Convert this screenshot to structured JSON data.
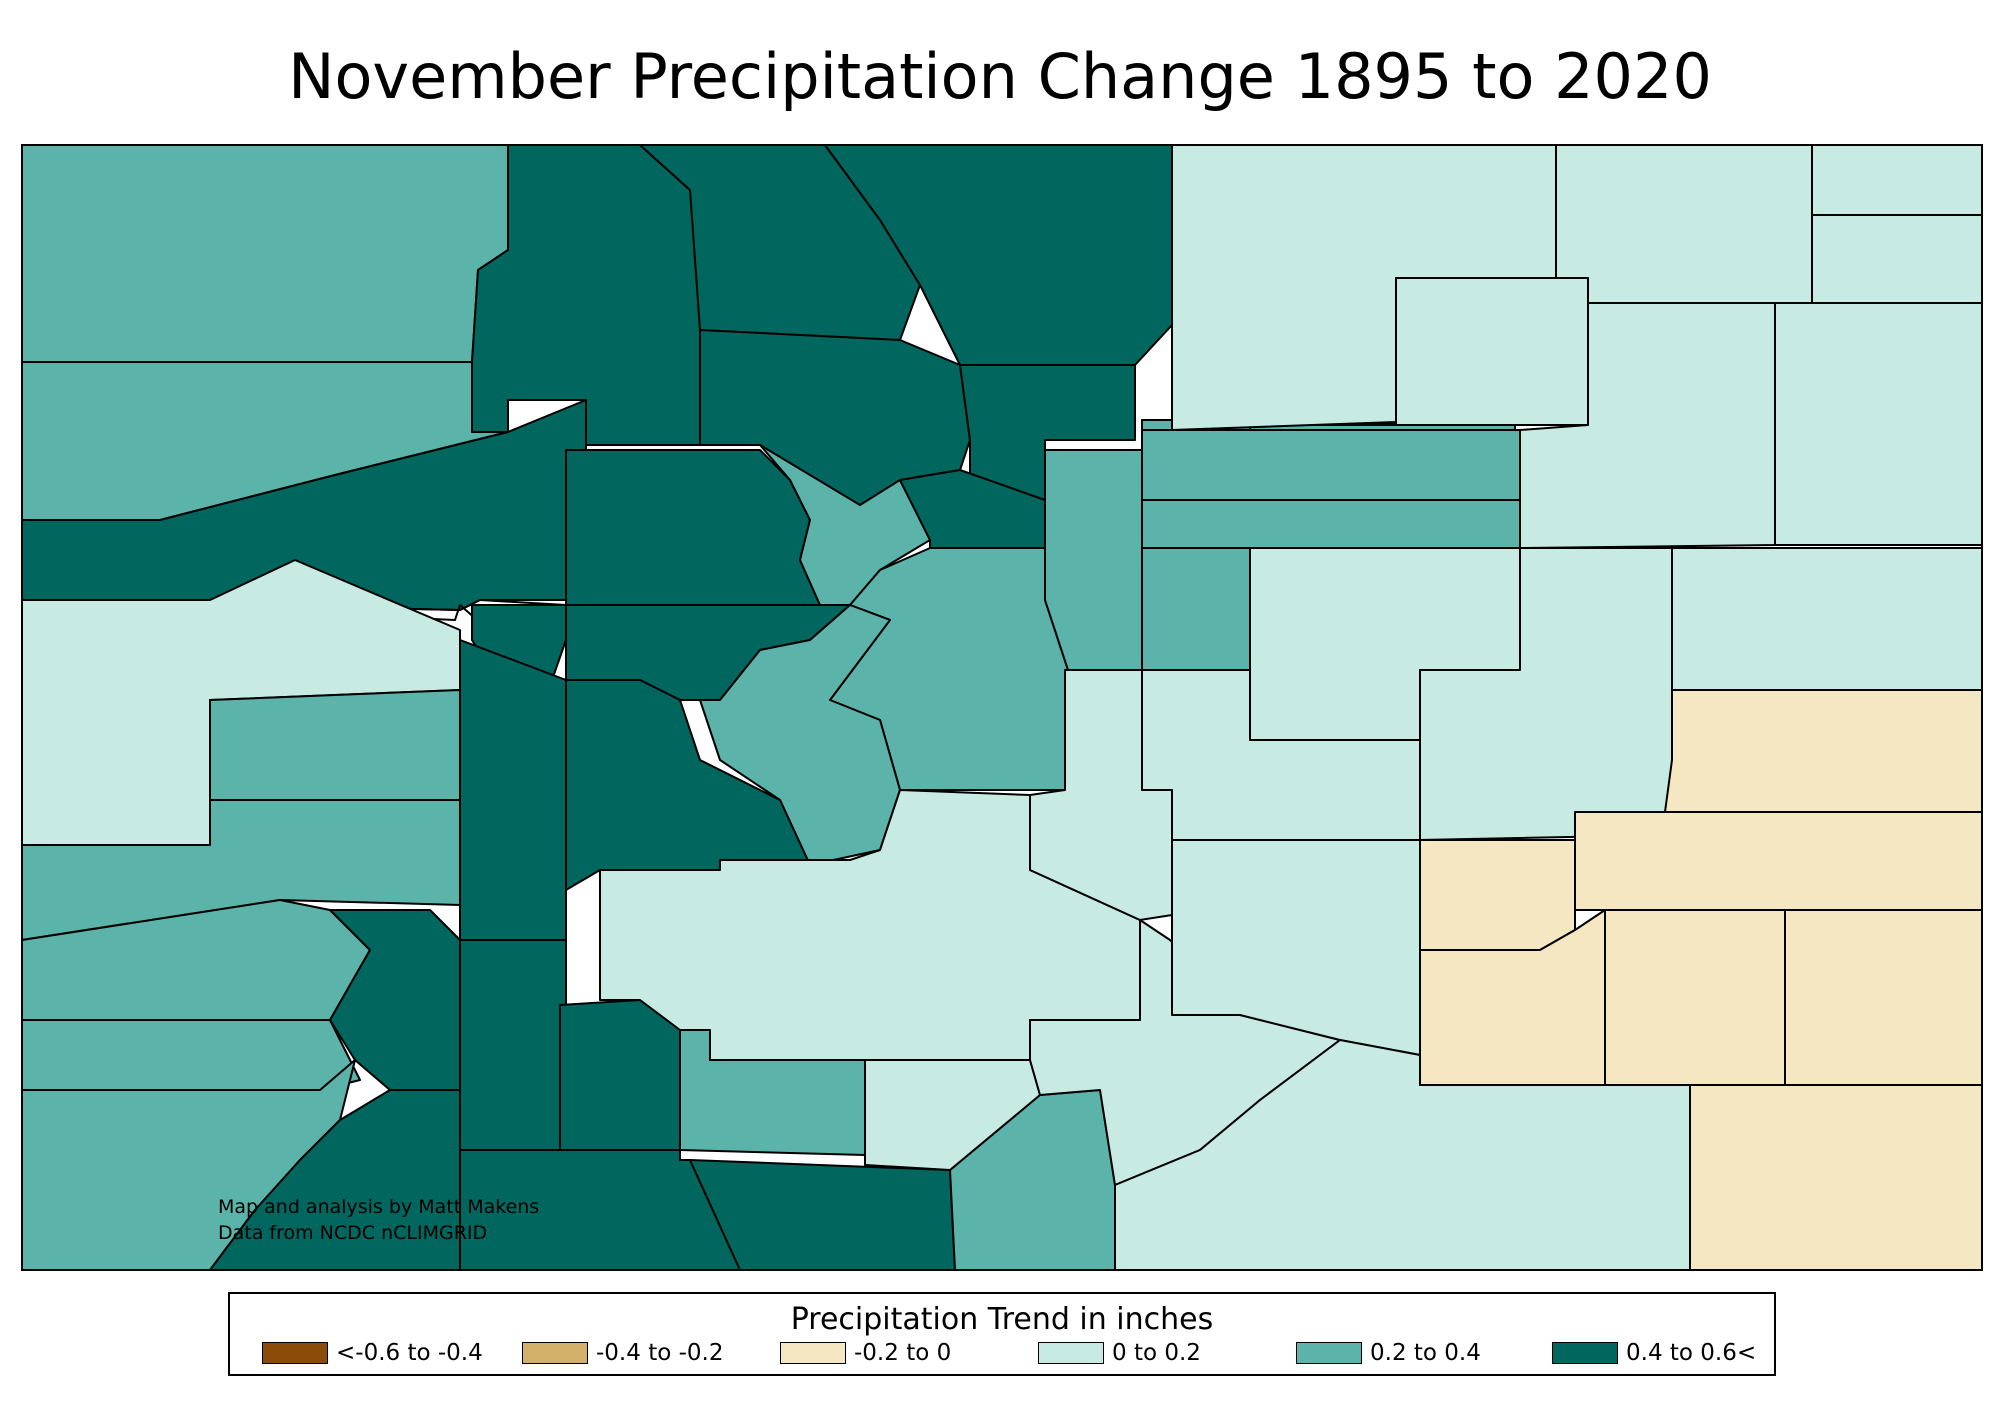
{
  "title": "November Precipitation Change 1895 to 2020",
  "credits": {
    "line1": "Map and analysis by Matt Makens",
    "line2": "Data from NCDC nCLIMGRID"
  },
  "legend": {
    "title": "Precipitation Trend in inches",
    "items": [
      {
        "label": "<-0.6 to -0.4",
        "color": "#8B4C0A"
      },
      {
        "label": "-0.4 to -0.2",
        "color": "#D4B16A"
      },
      {
        "label": "-0.2 to 0",
        "color": "#F5E7C1"
      },
      {
        "label": "0 to 0.2",
        "color": "#C7EAE3"
      },
      {
        "label": "0.2 to 0.4",
        "color": "#5BB3AA"
      },
      {
        "label": "0.4 to 0.6<",
        "color": "#01665E"
      }
    ]
  },
  "map": {
    "region_classes": [
      "0.2 to 0.4",
      "0.4 to 0.6<",
      "0 to 0.2",
      "-0.2 to 0"
    ]
  }
}
